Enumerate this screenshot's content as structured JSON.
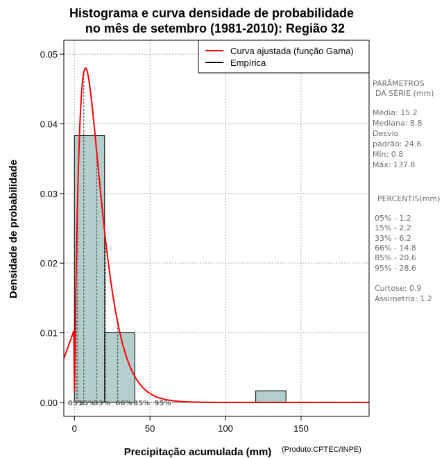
{
  "chart_data": {
    "type": "histogram",
    "title_line1": "Histograma e curva densidade de probabilidade",
    "title_line2": "no mês de setembro (1981-2010): Região 32",
    "xlabel": "Precipitação acumulada (mm)",
    "ylabel": "Densidade de probabilidade",
    "credit": "(Produto:CPTEC/INPE)",
    "xlim": [
      -7,
      195
    ],
    "ylim": [
      -0.002,
      0.052
    ],
    "x_ticks": [
      0,
      50,
      100,
      150
    ],
    "y_ticks": [
      0.0,
      0.01,
      0.02,
      0.03,
      0.04,
      0.05
    ],
    "y_tick_labels": [
      "0.00",
      "0.01",
      "0.02",
      "0.03",
      "0.04",
      "0.05"
    ],
    "bins": [
      {
        "start": 0,
        "end": 20,
        "density": 0.0383
      },
      {
        "start": 20,
        "end": 40,
        "density": 0.01
      },
      {
        "start": 40,
        "end": 60,
        "density": 0
      },
      {
        "start": 60,
        "end": 80,
        "density": 0
      },
      {
        "start": 80,
        "end": 100,
        "density": 0
      },
      {
        "start": 100,
        "end": 120,
        "density": 0
      },
      {
        "start": 120,
        "end": 140,
        "density": 0.00167
      }
    ],
    "gamma_fit": {
      "shape": 1.93,
      "scale": 7.9
    },
    "percentile_lines": [
      {
        "label": "05%",
        "value": 1.2
      },
      {
        "label": "15%",
        "value": 2.2
      },
      {
        "label": "33%",
        "value": 6.2
      },
      {
        "label": "66%",
        "value": 14.8
      },
      {
        "label": "85%",
        "value": 20.6
      },
      {
        "label": "95%",
        "value": 28.6
      }
    ],
    "legend": [
      {
        "label": "Curva ajustada (função Gama)",
        "color": "#ff0000"
      },
      {
        "label": "Empírica",
        "color": "#000000"
      }
    ],
    "colors": {
      "bar_fill": "#b4cece",
      "curve": "#ff0000",
      "grid": "#aaaaaa"
    }
  },
  "stats_panel": {
    "params_title_line1": "PARÂMETROS",
    "params_title_line2": "DA SÉRIE (mm)",
    "media": "Média:  15.2",
    "mediana": "Mediana:  8.8",
    "desvio_1": "Desvio",
    "desvio_2": "padrão:  24.6",
    "min": "Mín:  0.8",
    "max": "Máx:  137.8",
    "percentis_title": "PERCENTIS(mm)",
    "p05": "05% -  1.2",
    "p15": "15% -  2.2",
    "p33": "33% -  6.2",
    "p66": "66% -  14.8",
    "p85": "85% -  20.6",
    "p95": "95% -  28.6",
    "curtose": "Curtose:  0.9",
    "assimetria": "Assimetria:  1.2"
  }
}
